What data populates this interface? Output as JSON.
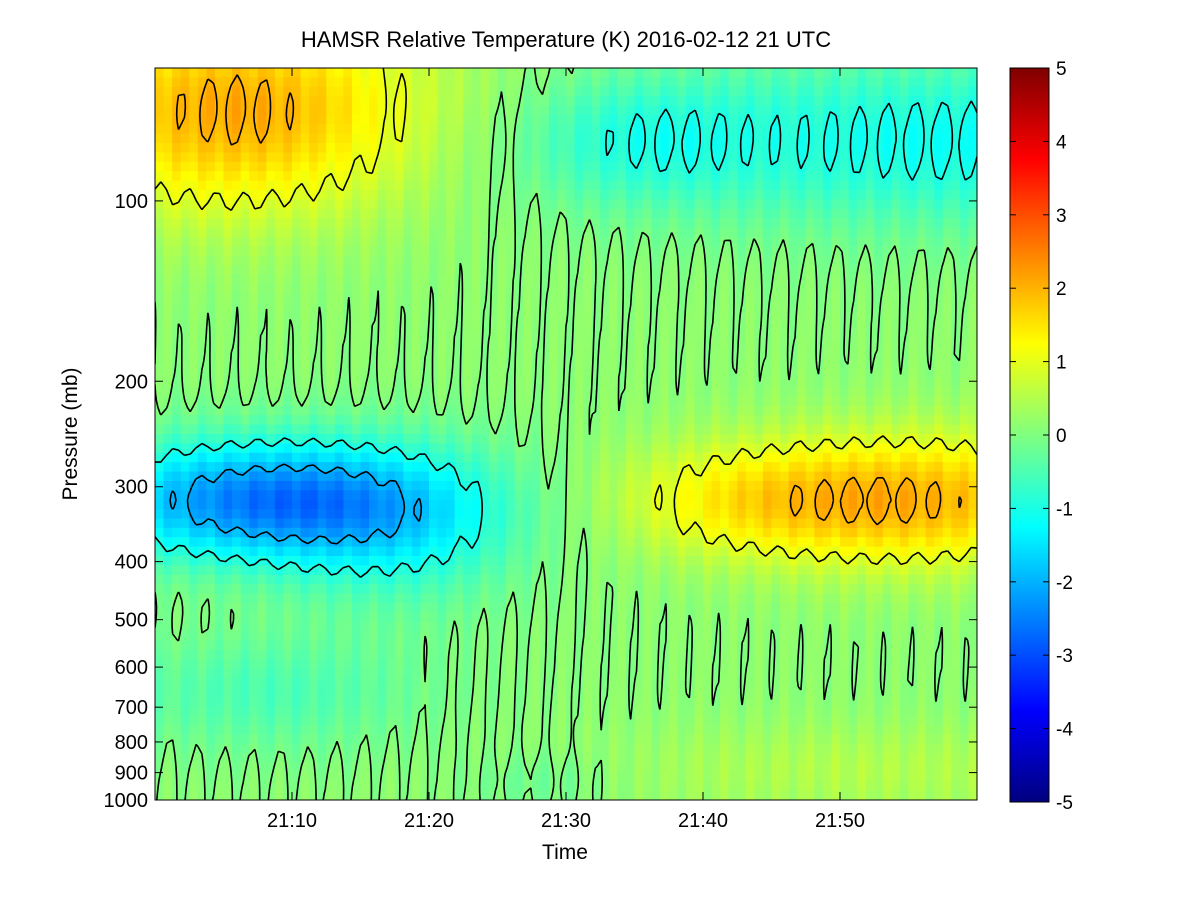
{
  "chart_data": {
    "type": "heatmap",
    "title": "HAMSR  Relative Temperature (K) 2016-02-12 21 UTC",
    "xlabel": "Time",
    "ylabel": "Pressure (mb)",
    "x_ticks": [
      "21:10",
      "21:20",
      "21:30",
      "21:40",
      "21:50"
    ],
    "x_tick_minutes": [
      10,
      20,
      30,
      40,
      50
    ],
    "xlim_minutes": [
      0,
      60
    ],
    "y_scale": "log",
    "y_ticks": [
      100,
      200,
      300,
      400,
      500,
      600,
      700,
      800,
      900,
      1000
    ],
    "ylim": [
      1000,
      60
    ],
    "colorbar": {
      "min": -5,
      "max": 5,
      "ticks": [
        5,
        4,
        3,
        2,
        1,
        0,
        -1,
        -2,
        -3,
        -4,
        -5
      ],
      "colormap": "jet"
    },
    "contour_levels": [
      -2,
      -1,
      0,
      1,
      2
    ],
    "contour_color": "#000000",
    "grid": false
  }
}
